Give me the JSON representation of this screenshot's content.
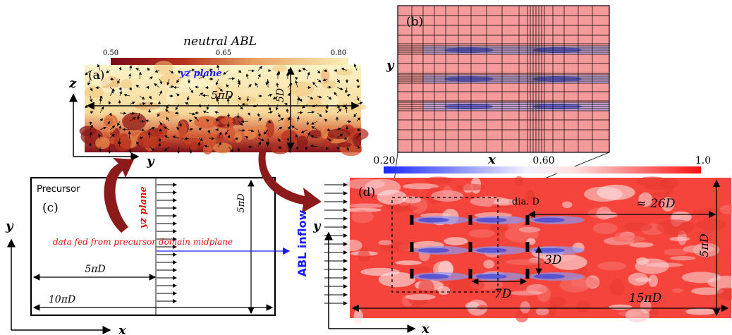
{
  "panel_a": {
    "title": "neutral ABL",
    "colorbar_ticks": [
      "0.50",
      "0.65",
      "0.80"
    ],
    "label": "(a)",
    "plane": "yz plane",
    "width_label": "5πD",
    "height_label": "5D",
    "axis_z": "z",
    "axis_y": "y"
  },
  "panel_b": {
    "label": "(b)",
    "axis_y": "y",
    "axis_x": "x"
  },
  "panel_c": {
    "title": "Precursor",
    "label": "(c)",
    "plane": "yz plane",
    "note": "data fed from precursor domain midplane",
    "height_label": "5πD",
    "half_length_label": "5πD",
    "length_label": "10πD",
    "axis_y": "y",
    "axis_x": "x"
  },
  "inflow": {
    "label": "ABL inflow"
  },
  "panel_d": {
    "colorbar_ticks": [
      "0.20",
      "0.60",
      "1.0"
    ],
    "label": "(d)",
    "dia_label": "dia. D",
    "wake_label": "≈ 26D",
    "height_label": "5πD",
    "spacing_y_label": "3D",
    "spacing_x_label": "7D",
    "length_label": "15πD",
    "axis_y": "y",
    "axis_x": "x"
  },
  "colors": {
    "dark_red": "#8b1a1a",
    "blue": "#1a1aff",
    "red_text": "#e01010"
  }
}
